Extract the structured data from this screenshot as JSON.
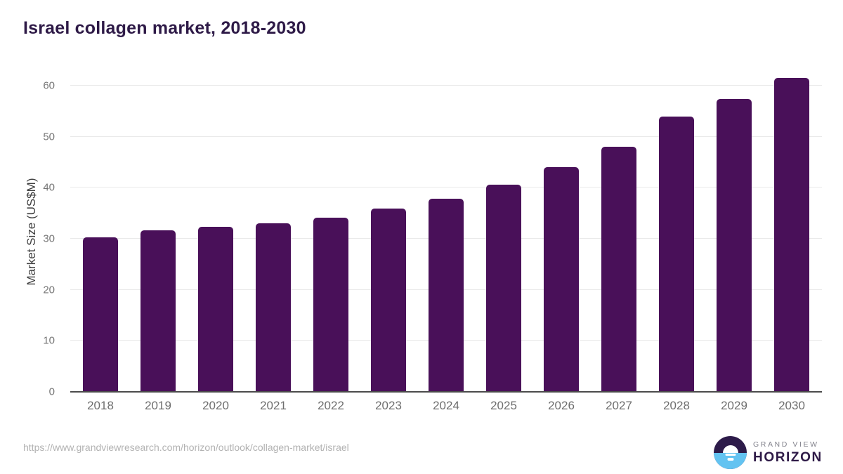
{
  "title": "Israel collagen market, 2018-2030",
  "chart_data": {
    "type": "bar",
    "categories": [
      "2018",
      "2019",
      "2020",
      "2021",
      "2022",
      "2023",
      "2024",
      "2025",
      "2026",
      "2027",
      "2028",
      "2029",
      "2030"
    ],
    "values": [
      30.3,
      31.7,
      32.3,
      33.1,
      34.2,
      35.9,
      37.8,
      40.6,
      44.0,
      48.1,
      53.9,
      57.4,
      61.6
    ],
    "title": "Israel collagen market, 2018-2030",
    "xlabel": "",
    "ylabel": "Market Size (US$M)",
    "ylim": [
      0,
      62.5
    ],
    "yticks": [
      0,
      10,
      20,
      30,
      40,
      50,
      60
    ],
    "grid": true,
    "legend": "none",
    "bar_color": "#491059"
  },
  "footer": {
    "source_url": "https://www.grandviewresearch.com/horizon/outlook/collagen-market/israel"
  },
  "logo": {
    "line1": "GRAND VIEW",
    "line2": "HORIZON",
    "circle_top_color": "#2d1b4a",
    "circle_bottom_color": "#63c3f1"
  },
  "colors": {
    "title": "#2e1a47",
    "bar": "#491059",
    "gridline": "#e9e9e9",
    "axis_line": "#4b4b4b",
    "tick_label": "#757575",
    "source_url": "#b2b2b2"
  }
}
